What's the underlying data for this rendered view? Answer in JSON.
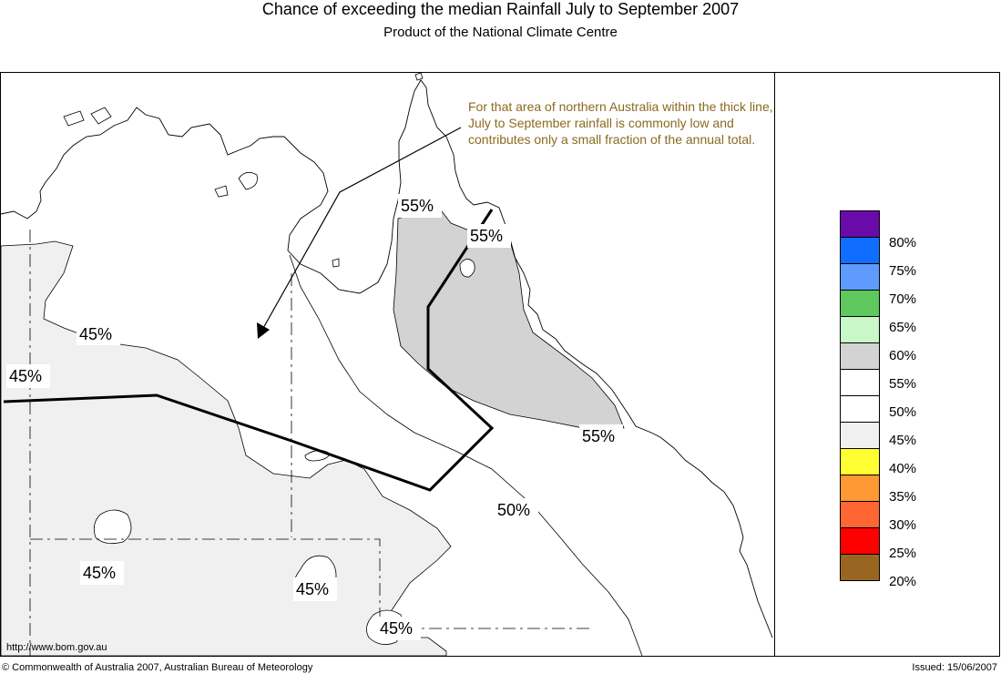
{
  "header": {
    "title": "Chance of exceeding the median Rainfall July to September 2007",
    "subtitle": "Product of the National Climate Centre"
  },
  "annotation": {
    "text": "For that area of northern Australia within the thick line, July to September rainfall is commonly low and contributes only a small fraction of the annual total."
  },
  "contour_labels": {
    "l1": "45%",
    "l2": "45%",
    "l3": "55%",
    "l4": "55%",
    "l5": "55%",
    "l6": "50%",
    "l7": "45%",
    "l8": "45%",
    "l9": "45%"
  },
  "legend": {
    "colors": [
      "#6a0aa8",
      "#0f6eff",
      "#5f9bff",
      "#5ec85e",
      "#c8f7c8",
      "#d3d3d3",
      "#ffffff",
      "#ffffff",
      "#f0f0f0",
      "#ffff33",
      "#ff9933",
      "#ff6633",
      "#ff0000",
      "#996622"
    ],
    "labels": [
      "80%",
      "75%",
      "70%",
      "65%",
      "60%",
      "55%",
      "50%",
      "45%",
      "40%",
      "35%",
      "30%",
      "25%",
      "20%"
    ]
  },
  "footer": {
    "url": "http://www.bom.gov.au",
    "copyright": "© Commonwealth of Australia 2007, Australian Bureau of Meteorology",
    "issued": "Issued: 15/06/2007"
  }
}
